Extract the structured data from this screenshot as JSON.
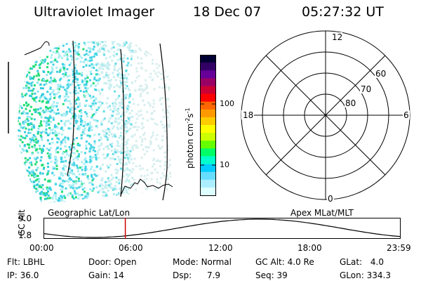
{
  "header": {
    "instrument": "Ultraviolet Imager",
    "date": "18 Dec 07",
    "time": "05:27:32 UT"
  },
  "colorbar": {
    "unit_label": "photon cm",
    "unit_exp1": "-2",
    "unit_mid": "s",
    "unit_exp2": "-1",
    "ticks": [
      "100",
      "10"
    ],
    "colors": [
      "#000033",
      "#330066",
      "#660099",
      "#990066",
      "#cc0033",
      "#ff0000",
      "#ff6600",
      "#ff9900",
      "#ffcc00",
      "#ffff00",
      "#ccff00",
      "#66ff00",
      "#00ff66",
      "#00ffcc",
      "#00ccff",
      "#66ddff",
      "#aaeeff",
      "#ddffff"
    ]
  },
  "polar_plot": {
    "mlt_labels": [
      "12",
      "18",
      "6",
      "0"
    ],
    "lat_labels": [
      "60",
      "70",
      "80"
    ]
  },
  "timeline": {
    "left_title": "Geographic Lat/Lon",
    "right_title": "Apex MLat/MLT",
    "axis_label": "GC Alt",
    "y_ticks": [
      "9.0",
      "1.8"
    ],
    "x_ticks": [
      "00:00",
      "06:00",
      "12:00",
      "18:00",
      "23:59"
    ],
    "current_marker_hour": 5.46
  },
  "status": {
    "row1": [
      {
        "label": "Flt:",
        "value": "LBHL"
      },
      {
        "label": "Door:",
        "value": "Open"
      },
      {
        "label": "Mode:",
        "value": "Normal"
      },
      {
        "label": "GC Alt:",
        "value": "4.0 Re"
      },
      {
        "label": "GLat:",
        "value": "4.0"
      }
    ],
    "row2": [
      {
        "label": "IP:",
        "value": "36.0"
      },
      {
        "label": "Gain:",
        "value": "14"
      },
      {
        "label": "Dsp:",
        "value": "7.9"
      },
      {
        "label": "Seq:",
        "value": "39"
      },
      {
        "label": "GLon:",
        "value": "334.3"
      }
    ]
  }
}
